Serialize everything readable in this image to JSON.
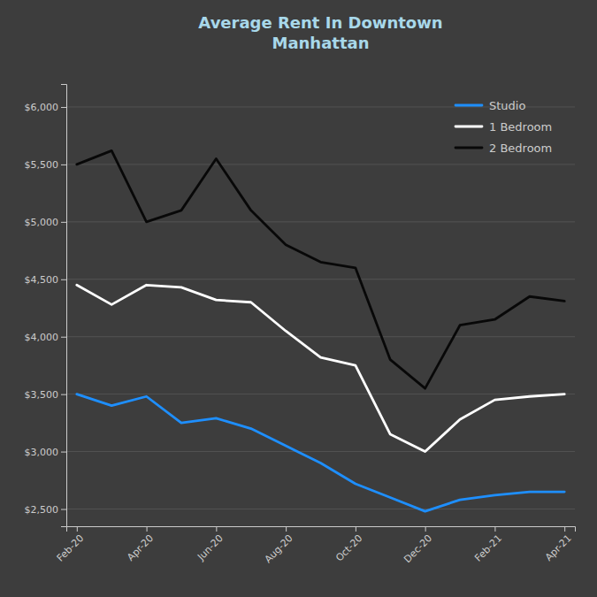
{
  "chart_data": {
    "type": "line",
    "title": "Average Rent In Downtown\nManhattan",
    "x": [
      0,
      1,
      2,
      3,
      4,
      5,
      6,
      7,
      8,
      9,
      10,
      11,
      12,
      13,
      14
    ],
    "xlim": [
      -0.3,
      14.3
    ],
    "xticks": [
      {
        "value": 0,
        "label": "Feb-20"
      },
      {
        "value": 2,
        "label": "Apr-20"
      },
      {
        "value": 4,
        "label": "Jun-20"
      },
      {
        "value": 6,
        "label": "Aug-20"
      },
      {
        "value": 8,
        "label": "Oct-20"
      },
      {
        "value": 10,
        "label": "Dec-20"
      },
      {
        "value": 12,
        "label": "Feb-21"
      },
      {
        "value": 14,
        "label": "Apr-21"
      }
    ],
    "ylim": [
      2350,
      6200
    ],
    "yticks": [
      {
        "value": 2500,
        "label": "$2,500"
      },
      {
        "value": 3000,
        "label": "$3,000"
      },
      {
        "value": 3500,
        "label": "$3,500"
      },
      {
        "value": 4000,
        "label": "$4,000"
      },
      {
        "value": 4500,
        "label": "$4,500"
      },
      {
        "value": 5000,
        "label": "$5,000"
      },
      {
        "value": 5500,
        "label": "$5,500"
      },
      {
        "value": 6000,
        "label": "$6,000"
      }
    ],
    "grid": true,
    "legend": "top-right",
    "series": [
      {
        "name": "Studio",
        "color": "#1e8fff",
        "values": [
          3500,
          3400,
          3480,
          3250,
          3290,
          3200,
          3050,
          2900,
          2720,
          2600,
          2480,
          2580,
          2620,
          2650,
          2650
        ]
      },
      {
        "name": "1 Bedroom",
        "color": "#ffffff",
        "values": [
          4450,
          4280,
          4450,
          4430,
          4320,
          4300,
          4050,
          3820,
          3750,
          3150,
          3000,
          3280,
          3450,
          3480,
          3500
        ]
      },
      {
        "name": "2 Bedroom",
        "color": "#080808",
        "values": [
          5500,
          5620,
          5000,
          5100,
          5550,
          5100,
          4800,
          4650,
          4600,
          3800,
          3550,
          4100,
          4150,
          4350,
          4310
        ]
      }
    ]
  }
}
